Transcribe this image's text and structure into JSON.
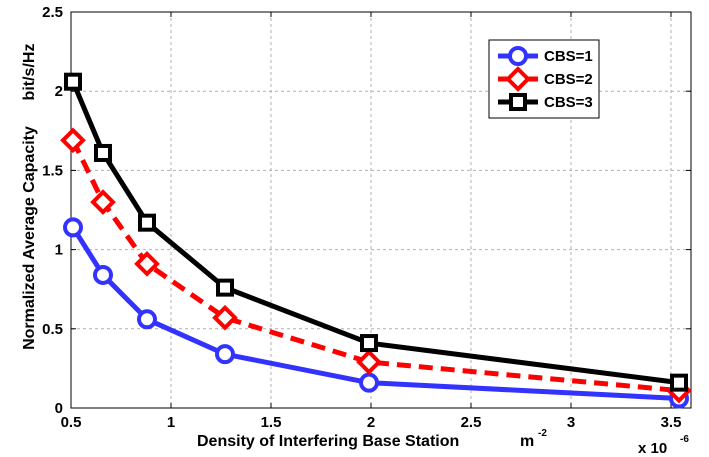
{
  "chart_data": {
    "type": "line",
    "title": "",
    "xlabel": "Density of Interfering Base Station",
    "xlabel_unit": "m",
    "xlabel_unit_exp": "-2",
    "ylabel": "Normalized Average Capacity",
    "ylabel_unit": "bit/s/Hz",
    "x_multiplier": "x 10",
    "x_multiplier_exp": "-6",
    "xlim": [
      0.5,
      3.6
    ],
    "ylim": [
      0,
      2.5
    ],
    "xticks": [
      0.5,
      1,
      1.5,
      2,
      2.5,
      3,
      3.5
    ],
    "xtick_labels": [
      "0.5",
      "1",
      "1.5",
      "2",
      "2.5",
      "3",
      "3.5"
    ],
    "yticks": [
      0,
      0.5,
      1,
      1.5,
      2,
      2.5
    ],
    "ytick_labels": [
      "0",
      "0.5",
      "1",
      "1.5",
      "2",
      "2.5"
    ],
    "grid": true,
    "legend_position": "top-right",
    "x": [
      0.51,
      0.66,
      0.88,
      1.27,
      1.99,
      3.54
    ],
    "series": [
      {
        "name": "CBS=1",
        "color": "#3333ff",
        "dash": "solid",
        "marker": "circle",
        "values": [
          1.14,
          0.84,
          0.56,
          0.34,
          0.16,
          0.06
        ]
      },
      {
        "name": "CBS=2",
        "color": "#ff0000",
        "dash": "dashed",
        "marker": "diamond",
        "values": [
          1.69,
          1.3,
          0.91,
          0.57,
          0.29,
          0.11
        ]
      },
      {
        "name": "CBS=3",
        "color": "#000000",
        "dash": "solid",
        "marker": "square",
        "values": [
          2.06,
          1.61,
          1.17,
          0.76,
          0.41,
          0.16
        ]
      }
    ]
  }
}
